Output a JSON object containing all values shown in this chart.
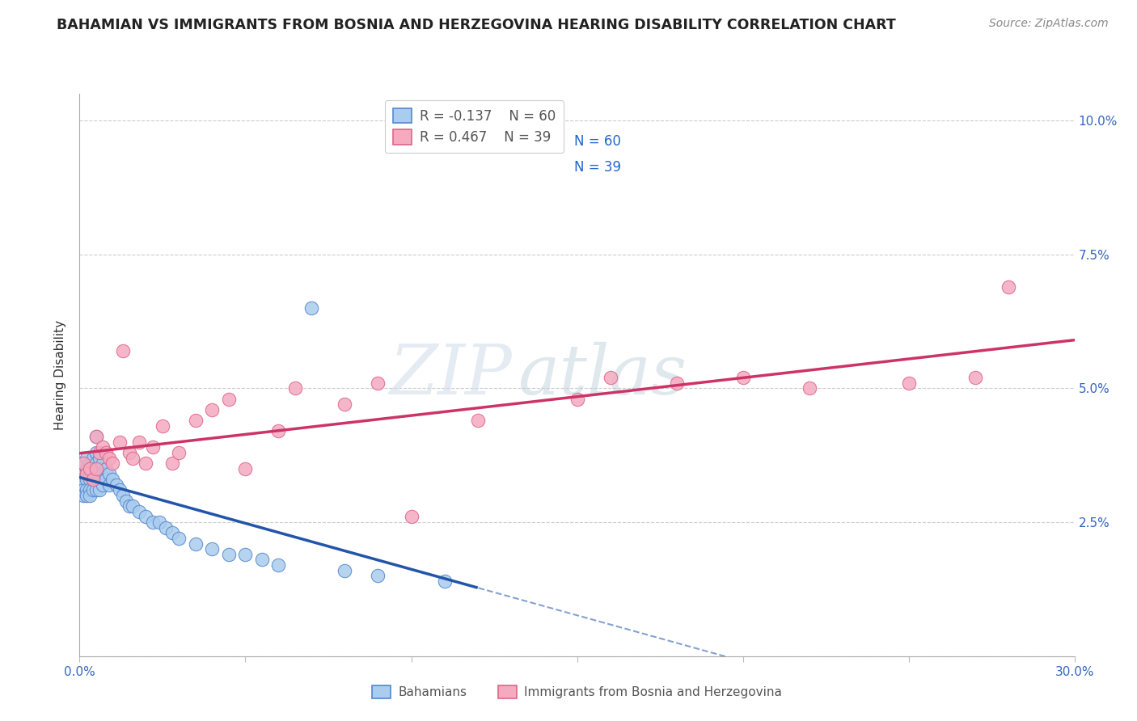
{
  "title": "BAHAMIAN VS IMMIGRANTS FROM BOSNIA AND HERZEGOVINA HEARING DISABILITY CORRELATION CHART",
  "source": "Source: ZipAtlas.com",
  "ylabel": "Hearing Disability",
  "xmin": 0.0,
  "xmax": 0.3,
  "ymin": 0.0,
  "ymax": 0.105,
  "x_ticks": [
    0.0,
    0.05,
    0.1,
    0.15,
    0.2,
    0.25,
    0.3
  ],
  "y_ticks": [
    0.0,
    0.025,
    0.05,
    0.075,
    0.1
  ],
  "y_tick_labels_right": [
    "",
    "2.5%",
    "5.0%",
    "7.5%",
    "10.0%"
  ],
  "r_blue": -0.137,
  "n_blue": 60,
  "r_pink": 0.467,
  "n_pink": 39,
  "blue_scatter_color": "#aaccee",
  "blue_edge_color": "#5588cc",
  "pink_scatter_color": "#f5aac0",
  "pink_edge_color": "#dd6688",
  "blue_line_color": "#2255aa",
  "pink_line_color": "#cc3366",
  "watermark_zip": "ZIP",
  "watermark_atlas": "atlas",
  "legend_label_blue": "Bahamians",
  "legend_label_pink": "Immigrants from Bosnia and Herzegovina",
  "blue_points_x": [
    0.001,
    0.001,
    0.001,
    0.001,
    0.001,
    0.002,
    0.002,
    0.002,
    0.002,
    0.002,
    0.003,
    0.003,
    0.003,
    0.003,
    0.003,
    0.004,
    0.004,
    0.004,
    0.004,
    0.005,
    0.005,
    0.005,
    0.005,
    0.005,
    0.005,
    0.006,
    0.006,
    0.006,
    0.006,
    0.007,
    0.007,
    0.007,
    0.008,
    0.008,
    0.009,
    0.009,
    0.01,
    0.011,
    0.012,
    0.013,
    0.014,
    0.015,
    0.016,
    0.018,
    0.02,
    0.022,
    0.024,
    0.026,
    0.028,
    0.03,
    0.035,
    0.04,
    0.045,
    0.05,
    0.055,
    0.06,
    0.07,
    0.08,
    0.09,
    0.11
  ],
  "blue_points_y": [
    0.036,
    0.034,
    0.033,
    0.031,
    0.03,
    0.037,
    0.035,
    0.033,
    0.031,
    0.03,
    0.036,
    0.034,
    0.033,
    0.031,
    0.03,
    0.037,
    0.035,
    0.033,
    0.031,
    0.038,
    0.036,
    0.034,
    0.033,
    0.031,
    0.041,
    0.037,
    0.035,
    0.034,
    0.031,
    0.036,
    0.034,
    0.032,
    0.035,
    0.033,
    0.034,
    0.032,
    0.033,
    0.032,
    0.031,
    0.03,
    0.029,
    0.028,
    0.028,
    0.027,
    0.026,
    0.025,
    0.025,
    0.024,
    0.023,
    0.022,
    0.021,
    0.02,
    0.019,
    0.019,
    0.018,
    0.017,
    0.065,
    0.016,
    0.015,
    0.014
  ],
  "pink_points_x": [
    0.001,
    0.002,
    0.003,
    0.004,
    0.005,
    0.005,
    0.006,
    0.007,
    0.008,
    0.009,
    0.01,
    0.012,
    0.013,
    0.015,
    0.016,
    0.018,
    0.02,
    0.022,
    0.025,
    0.028,
    0.03,
    0.035,
    0.04,
    0.045,
    0.05,
    0.06,
    0.065,
    0.08,
    0.09,
    0.1,
    0.12,
    0.15,
    0.16,
    0.18,
    0.2,
    0.22,
    0.25,
    0.27,
    0.28
  ],
  "pink_points_y": [
    0.036,
    0.034,
    0.035,
    0.033,
    0.035,
    0.041,
    0.038,
    0.039,
    0.038,
    0.037,
    0.036,
    0.04,
    0.057,
    0.038,
    0.037,
    0.04,
    0.036,
    0.039,
    0.043,
    0.036,
    0.038,
    0.044,
    0.046,
    0.048,
    0.035,
    0.042,
    0.05,
    0.047,
    0.051,
    0.026,
    0.044,
    0.048,
    0.052,
    0.051,
    0.052,
    0.05,
    0.051,
    0.052,
    0.069
  ]
}
